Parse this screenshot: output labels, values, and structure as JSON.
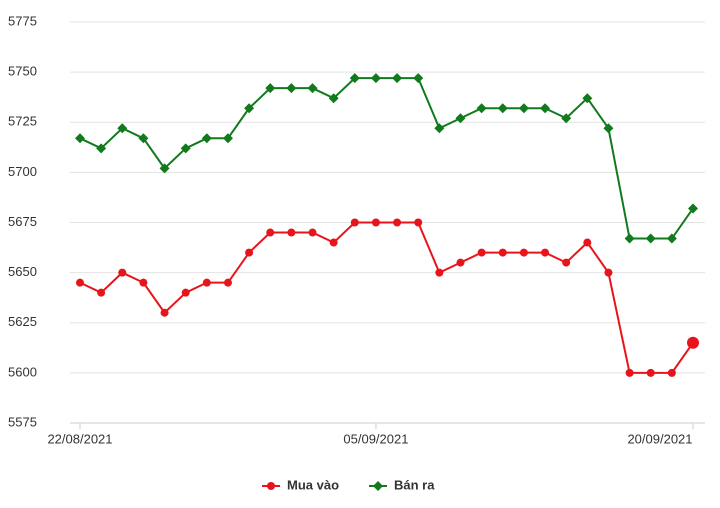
{
  "chart_data": {
    "type": "line",
    "categories": [
      "22/08/2021",
      null,
      null,
      null,
      null,
      null,
      null,
      null,
      null,
      null,
      null,
      null,
      null,
      null,
      "05/09/2021",
      null,
      null,
      null,
      null,
      null,
      null,
      null,
      null,
      null,
      null,
      null,
      null,
      null,
      null,
      "20/09/2021"
    ],
    "series": [
      {
        "name": "Mua vào",
        "color": "#e8141b",
        "marker": "circle",
        "values": [
          5645,
          5640,
          5650,
          5645,
          5630,
          5640,
          5645,
          5645,
          5660,
          5670,
          5670,
          5670,
          5665,
          5675,
          5675,
          5675,
          5675,
          5650,
          5655,
          5660,
          5660,
          5660,
          5660,
          5655,
          5665,
          5650,
          5600,
          5600,
          5600,
          5615
        ]
      },
      {
        "name": "Bán ra",
        "color": "#117a1d",
        "marker": "diamond",
        "values": [
          5717,
          5712,
          5722,
          5717,
          5702,
          5712,
          5717,
          5717,
          5732,
          5742,
          5742,
          5742,
          5737,
          5747,
          5747,
          5747,
          5747,
          5722,
          5727,
          5732,
          5732,
          5732,
          5732,
          5727,
          5737,
          5722,
          5667,
          5667,
          5667,
          5682
        ]
      }
    ],
    "ylim": [
      5575,
      5775
    ],
    "yticks": [
      5575,
      5600,
      5625,
      5650,
      5675,
      5700,
      5725,
      5750,
      5775
    ],
    "grid": true,
    "legend": "bottom"
  }
}
